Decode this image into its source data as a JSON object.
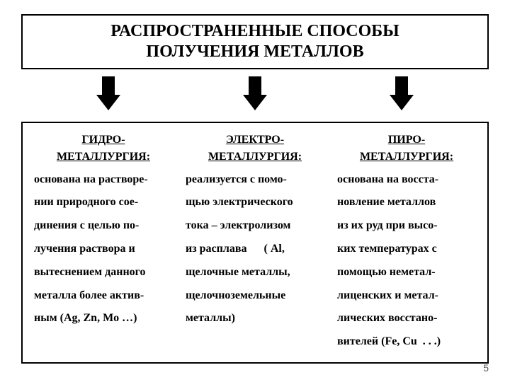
{
  "title": {
    "line1": "РАСПРОСТРАНЕННЫЕ  СПОСОБЫ",
    "line2": "ПОЛУЧЕНИЯ  МЕТАЛЛОВ"
  },
  "columns": [
    {
      "heading_line1": "ГИДРО-",
      "heading_line2": "МЕТАЛЛУРГИЯ:",
      "lines": [
        "основана на растворе-",
        "нии природного сое-",
        "динения с целью по-",
        "лучения раствора и",
        "вытеснением данного",
        "металла более актив-",
        "ным (Ag, Zn, Mo …)"
      ]
    },
    {
      "heading_line1": "ЭЛЕКТРО-",
      "heading_line2": "МЕТАЛЛУРГИЯ:",
      "lines": [
        "реализуется с помо-",
        "щью электрического",
        "тока – электролизом",
        "из расплава      ( Al,",
        "щелочные металлы,",
        "щелочноземельные",
        "металлы)"
      ]
    },
    {
      "heading_line1": "ПИРО-",
      "heading_line2": "МЕТАЛЛУРГИЯ:",
      "lines": [
        "основана на восста-",
        "новление металлов",
        "из их руд при высо-",
        "ких температурах с",
        "помощью неметал-",
        "лиценских и метал-",
        "лических восстано-",
        "вителей (Fe, Cu  . . .)"
      ]
    }
  ],
  "page_number": "5",
  "colors": {
    "border": "#000000",
    "text": "#000000",
    "background": "#ffffff",
    "arrow": "#000000"
  }
}
